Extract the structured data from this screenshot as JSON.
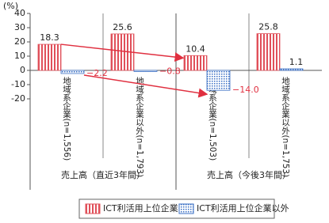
{
  "chart_data": {
    "type": "bar",
    "y_label": "(%)",
    "categories": [
      "地域系企業(n=1,556)",
      "地域系企業以外(n=1,793)",
      "地域系企業(n=1,503)",
      "地域系企業以外(n=1,753)"
    ],
    "group_labels": [
      "売上高（直近3年間）",
      "売上高（今後3年間）"
    ],
    "series": [
      {
        "name": "ICT利活用上位企業",
        "color": "#e0505a",
        "values": [
          18.3,
          25.6,
          10.4,
          25.8
        ]
      },
      {
        "name": "ICT利活用上位企業以外",
        "color": "#3a6fc4",
        "values": [
          -2.2,
          -0.8,
          -14.0,
          1.1
        ],
        "value_labels": [
          "−2.2",
          "−0.8",
          "−14.0",
          "1.1"
        ]
      }
    ],
    "ylim": [
      -20,
      40
    ],
    "yticks": [
      -20,
      -10,
      0,
      10,
      20,
      30,
      40
    ]
  }
}
